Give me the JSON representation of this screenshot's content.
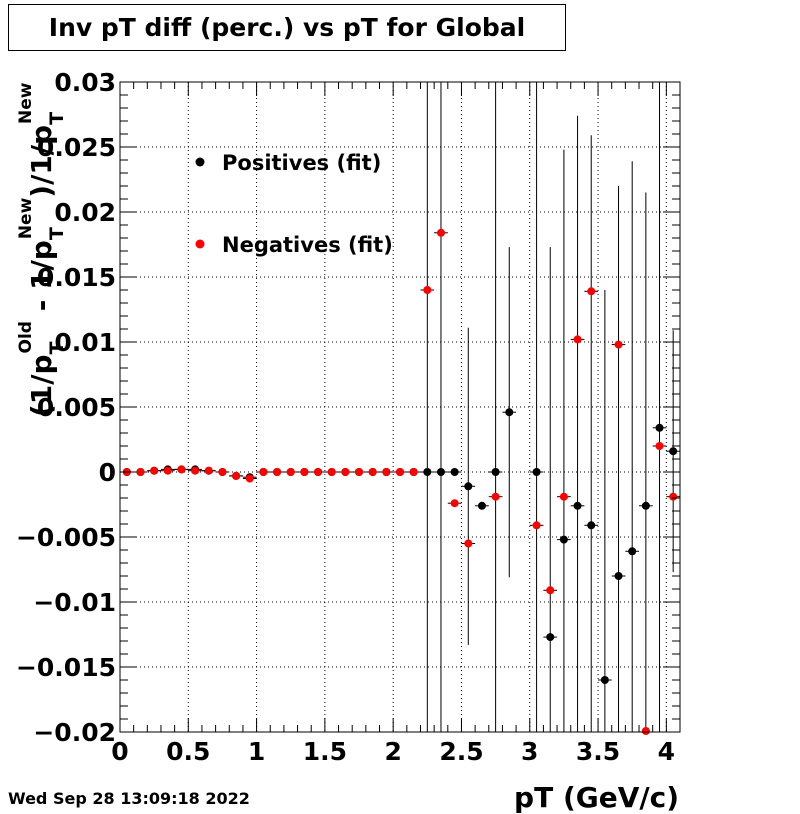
{
  "chart_data": {
    "type": "scatter",
    "title": "Inv pT diff (perc.) vs pT for Global",
    "xlabel": "pT (GeV/c)",
    "ylabel_parts": {
      "open": "(1/p",
      "sub1": "T",
      "sup1": "Old",
      "mid": " - 1/p",
      "sub2": "T",
      "sup2": "New",
      "after": ")/1/p",
      "sub3": "T",
      "sup3": "New"
    },
    "xlim": [
      0,
      4.1
    ],
    "ylim": [
      -0.02,
      0.03
    ],
    "x_ticks": [
      0,
      0.5,
      1,
      1.5,
      2,
      2.5,
      3,
      3.5,
      4
    ],
    "x_tick_labels": [
      "0",
      "0.5",
      "1",
      "1.5",
      "2",
      "2.5",
      "3",
      "3.5",
      "4"
    ],
    "y_ticks": [
      -0.02,
      -0.015,
      -0.01,
      -0.005,
      0,
      0.005,
      0.01,
      0.015,
      0.02,
      0.025,
      0.03
    ],
    "y_tick_labels": [
      "−0.02",
      "−0.015",
      "−0.01",
      "−0.005",
      "0",
      "0.005",
      "0.01",
      "0.015",
      "0.02",
      "0.025",
      "0.03"
    ],
    "grid": true,
    "legend_position": "top-left",
    "series": [
      {
        "name": "Positives (fit)",
        "color": "#000000",
        "x": [
          0.05,
          0.15,
          0.25,
          0.35,
          0.45,
          0.55,
          0.65,
          0.75,
          0.85,
          0.95,
          1.05,
          1.15,
          1.25,
          1.35,
          1.45,
          1.55,
          1.65,
          1.75,
          1.85,
          1.95,
          2.05,
          2.15,
          2.25,
          2.35,
          2.45,
          2.55,
          2.65,
          2.75,
          2.85,
          3.05,
          3.15,
          3.25,
          3.35,
          3.45,
          3.55,
          3.65,
          3.75,
          3.85,
          3.95,
          4.05
        ],
        "y": [
          0,
          0,
          0.0001,
          0.0002,
          0.0002,
          0.0002,
          0.0001,
          0,
          -0.0003,
          -0.0004,
          0,
          0,
          0,
          0,
          0,
          0,
          0,
          0,
          0,
          0,
          0,
          0,
          0,
          0,
          0,
          -0.0011,
          -0.0026,
          0,
          0.0046,
          0,
          -0.0127,
          -0.0052,
          -0.0026,
          -0.0041,
          -0.016,
          -0.008,
          -0.0061,
          -0.0026,
          0.0034,
          0.0016
        ],
        "yerr": [
          0,
          0,
          0,
          0,
          0,
          0,
          0,
          0,
          0,
          0,
          0,
          0,
          0,
          0,
          0,
          0,
          0,
          0,
          0,
          0,
          0,
          0,
          0.03,
          0.03,
          0,
          0.0122,
          0,
          0.03,
          0.0127,
          0.03,
          0.03,
          0.03,
          0.03,
          0.03,
          0.03,
          0.03,
          0.03,
          0.0241,
          0.03,
          0.0093
        ]
      },
      {
        "name": "Negatives (fit)",
        "color": "#ff0000",
        "x": [
          0.05,
          0.15,
          0.25,
          0.35,
          0.45,
          0.55,
          0.65,
          0.75,
          0.85,
          0.95,
          1.05,
          1.15,
          1.25,
          1.35,
          1.45,
          1.55,
          1.65,
          1.75,
          1.85,
          1.95,
          2.05,
          2.15,
          2.25,
          2.35,
          2.45,
          2.55,
          2.75,
          3.05,
          3.15,
          3.25,
          3.35,
          3.45,
          3.65,
          3.85,
          3.95,
          4.05
        ],
        "y": [
          0,
          0,
          0.0001,
          0.0001,
          0.0002,
          0.0001,
          0.0001,
          0,
          -0.0003,
          -0.0005,
          0,
          0,
          0,
          0,
          0,
          0,
          0,
          0,
          0,
          0,
          0,
          0,
          0.014,
          0.0184,
          -0.0024,
          -0.0055,
          -0.0019,
          -0.0041,
          -0.0091,
          -0.0019,
          0.0102,
          0.0139,
          0.0098,
          -0.02,
          0.002,
          -0.0019
        ]
      }
    ]
  },
  "timestamp": "Wed Sep 28 13:09:18 2022"
}
